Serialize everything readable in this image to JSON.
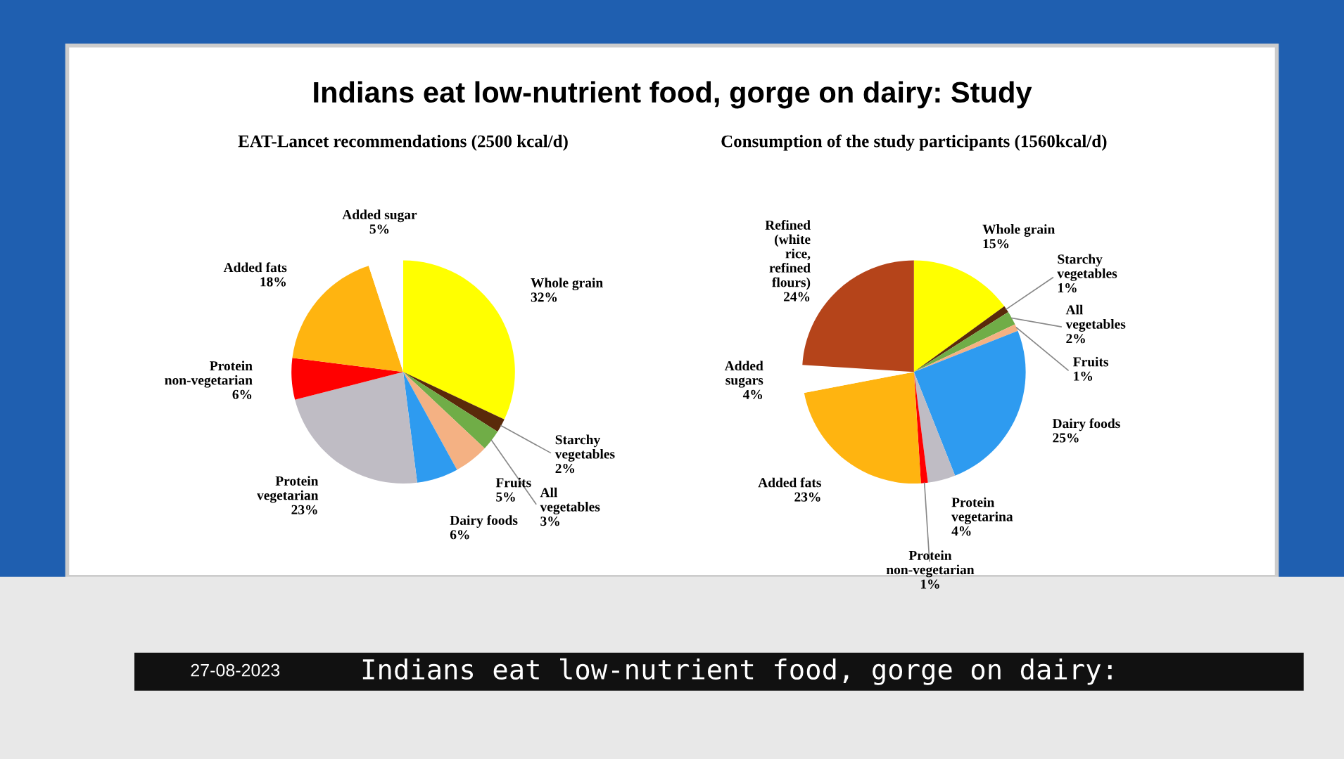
{
  "chart_data": [
    {
      "type": "pie",
      "title": "EAT-Lancet recommendations (2500 kcal/d)",
      "annotations": [
        "Indians eat low-nutrient food, gorge on dairy: Study",
        "27-08-2023",
        "Indians eat low-nutrient food, gorge on dairy:"
      ],
      "categories": [
        "Whole grain",
        "Starchy vegetables",
        "All vegetables",
        "Fruits",
        "Dairy foods",
        "Protein vegetarian",
        "Protein non-vegetarian",
        "Added fats",
        "Added sugar"
      ],
      "values": [
        32,
        2,
        3,
        5,
        6,
        23,
        6,
        18,
        5
      ],
      "value_labels": [
        "32%",
        "2%",
        "3%",
        "5%",
        "6%",
        "23%",
        "6%",
        "18%",
        "5%"
      ],
      "colors": [
        "#ffff00",
        "#5a2a0a",
        "#70ad47",
        "#f4b183",
        "#2e9bf0",
        "#bfbcc4",
        "#ff0000",
        "#ffb410",
        "#ffffff"
      ]
    },
    {
      "type": "pie",
      "title": "Consumption of the study participants (1560kcal/d)",
      "categories": [
        "Whole grain",
        "Starchy vegetables",
        "All vegetables",
        "Fruits",
        "Dairy foods",
        "Protein vegetarina",
        "Protein non-vegetarian",
        "Added fats",
        "Added sugars",
        "Refined (white rice, refined flours)"
      ],
      "values": [
        15,
        1,
        2,
        1,
        25,
        4,
        1,
        23,
        4,
        24
      ],
      "value_labels": [
        "15%",
        "1%",
        "2%",
        "1%",
        "25%",
        "4%",
        "1%",
        "23%",
        "4%",
        "24%"
      ],
      "colors": [
        "#ffff00",
        "#5a2a0a",
        "#70ad47",
        "#f4b183",
        "#2e9bf0",
        "#bfbcc4",
        "#ff0000",
        "#ffb410",
        "#ffffff",
        "#b5441a"
      ]
    }
  ]
}
